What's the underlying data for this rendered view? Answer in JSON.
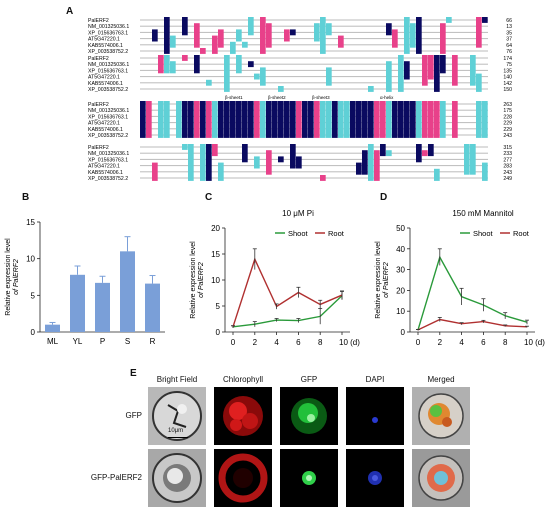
{
  "panels": {
    "A": "A",
    "B": "B",
    "C": "C",
    "D": "D",
    "E": "E"
  },
  "alignment": {
    "blocks": [
      {
        "names": [
          "PalERF2",
          "NM_001325036.1",
          "XP_015636763.1",
          "AT5G47220.1",
          "KAB5574006.1",
          "XP_003538752.2"
        ],
        "ends": [
          "66",
          "13",
          "35",
          "37",
          "64",
          "76"
        ]
      },
      {
        "names": [
          "PalERF2",
          "NM_001325036.1",
          "XP_015636763.1",
          "AT5G47220.1",
          "KAB5574006.1",
          "XP_003538752.2"
        ],
        "ends": [
          "174",
          "75",
          "135",
          "140",
          "142",
          "150"
        ]
      },
      {
        "names": [
          "PalERF2",
          "NM_001325036.1",
          "XP_015636763.1",
          "AT5G47220.1",
          "KAB5574006.1",
          "XP_003538752.2"
        ],
        "ends": [
          "263",
          "175",
          "228",
          "229",
          "229",
          "243"
        ]
      },
      {
        "names": [
          "PalERF2",
          "NM_001325036.1",
          "XP_015636763.1",
          "AT5G47220.1",
          "KAB5574006.1",
          "XP_003538752.2"
        ],
        "ends": [
          "315",
          "233",
          "277",
          "283",
          "243",
          "249"
        ]
      }
    ],
    "motif_labels": [
      "β-sheet1",
      "β-sheet2",
      "β-sheet3",
      "α-helix"
    ],
    "colors": {
      "identical": "#0a0a60",
      "high": "#e8418a",
      "medium": "#5fd0d6"
    }
  },
  "chart_data": [
    {
      "type": "bar",
      "panel": "B",
      "categories": [
        "ML",
        "YL",
        "P",
        "S",
        "R"
      ],
      "values": [
        1.0,
        7.8,
        6.7,
        11.0,
        6.6
      ],
      "errors": [
        0.3,
        1.2,
        0.9,
        2.0,
        1.1
      ],
      "ylabel": "Relative expression level of PalERF2",
      "ylim": [
        0,
        15
      ],
      "yticks": [
        "0",
        "5",
        "10",
        "15"
      ],
      "color": "#7a9fd8"
    },
    {
      "type": "line",
      "panel": "C",
      "title": "10 μM Pi",
      "x": [
        0,
        2,
        4,
        6,
        8,
        10
      ],
      "xticks": [
        "0",
        "2",
        "4",
        "6",
        "8",
        "10 (d)"
      ],
      "series": [
        {
          "name": "Shoot",
          "values": [
            1.0,
            1.5,
            2.3,
            2.2,
            3.0,
            7.0
          ],
          "errors": [
            0.2,
            0.5,
            0.3,
            0.4,
            1.5,
            0.8
          ],
          "color": "#2a9a3a"
        },
        {
          "name": "Root",
          "values": [
            1.0,
            14.0,
            4.9,
            7.6,
            5.3,
            7.1
          ],
          "errors": [
            0.2,
            2.0,
            0.5,
            1.0,
            0.8,
            0.8
          ],
          "color": "#b03030"
        }
      ],
      "ylabel": "Relative expression level of PalERF2",
      "ylim": [
        0,
        20
      ],
      "yticks": [
        "0",
        "5",
        "10",
        "15",
        "20"
      ],
      "legend": "top-right"
    },
    {
      "type": "line",
      "panel": "D",
      "title": "150 mM Mannitol",
      "x": [
        0,
        2,
        4,
        6,
        8,
        10
      ],
      "xticks": [
        "0",
        "2",
        "4",
        "6",
        "8",
        "10 (d)"
      ],
      "series": [
        {
          "name": "Shoot",
          "values": [
            1.0,
            36.0,
            17.0,
            13.0,
            7.8,
            4.7
          ],
          "errors": [
            0.2,
            4.0,
            4.0,
            3.0,
            1.5,
            1.0
          ],
          "color": "#2a9a3a"
        },
        {
          "name": "Root",
          "values": [
            1.0,
            6.0,
            4.0,
            5.0,
            3.0,
            2.5
          ],
          "errors": [
            0.2,
            1.0,
            0.5,
            0.6,
            0.4,
            0.3
          ],
          "color": "#b03030"
        }
      ],
      "ylabel": "Relative expression level of PalERF2",
      "ylim": [
        0,
        50
      ],
      "yticks": [
        "0",
        "10",
        "20",
        "30",
        "40",
        "50"
      ],
      "legend": "top-right"
    }
  ],
  "microscopy": {
    "columns": [
      "Bright Field",
      "Chlorophyll",
      "GFP",
      "DAPI",
      "Merged"
    ],
    "rows": [
      "GFP",
      "GFP-PalERF2"
    ],
    "scale_bar": "10μm"
  }
}
